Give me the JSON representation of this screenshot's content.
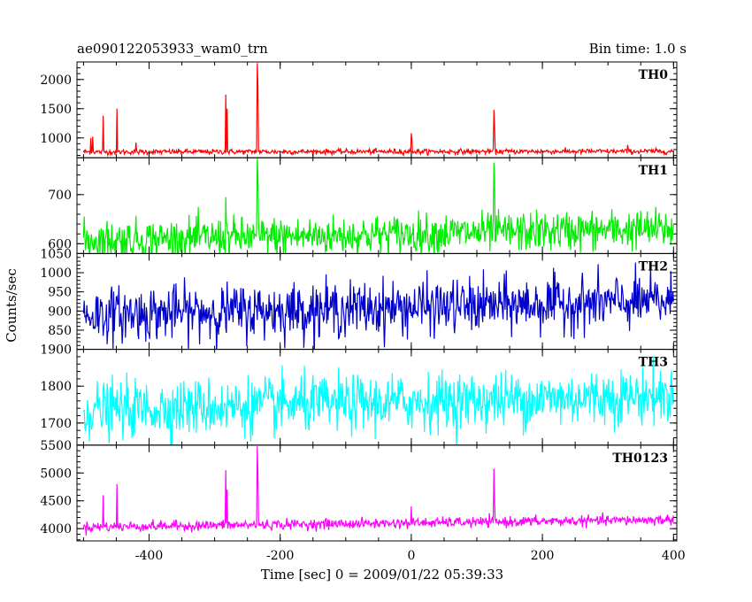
{
  "header": {
    "title": "ae090122053933_wam0_trn",
    "bin_time": "Bin time: 1.0 s"
  },
  "chart_data": {
    "type": "line",
    "xlabel": "Time [sec] 0 = 2009/01/22 05:39:33",
    "ylabel": "Counts/sec",
    "xlim": [
      -510,
      405
    ],
    "xticks": [
      -400,
      -200,
      0,
      200,
      400
    ],
    "bin_seconds": 1.0,
    "panels": [
      {
        "name": "TH0",
        "color": "#ff0000",
        "ylim": [
          660,
          2300
        ],
        "yticks": [
          1000,
          1500,
          2000
        ],
        "baseline": 760,
        "noise": 22,
        "trend_end": 770,
        "spikes": [
          [
            -489,
            1000
          ],
          [
            -486,
            1020
          ],
          [
            -470,
            1380
          ],
          [
            -449,
            1500
          ],
          [
            -420,
            920
          ],
          [
            -283,
            1740
          ],
          [
            -281,
            1500
          ],
          [
            -235,
            2280
          ],
          [
            -234,
            1900
          ],
          [
            0,
            1080
          ],
          [
            1,
            980
          ],
          [
            126,
            1480
          ],
          [
            127,
            1200
          ],
          [
            330,
            880
          ]
        ]
      },
      {
        "name": "TH1",
        "color": "#00ee00",
        "ylim": [
          580,
          775
        ],
        "yticks": [
          600,
          700
        ],
        "baseline": 607,
        "noise": 20,
        "trend_end": 630,
        "spikes": [
          [
            -235,
            775
          ],
          [
            -234,
            740
          ],
          [
            126,
            765
          ],
          [
            127,
            730
          ],
          [
            -283,
            695
          ]
        ]
      },
      {
        "name": "TH2",
        "color": "#0000cc",
        "ylim": [
          800,
          1050
        ],
        "yticks": [
          850,
          900,
          950,
          1000,
          1050
        ],
        "baseline": 890,
        "noise": 35,
        "trend_end": 925,
        "spikes": []
      },
      {
        "name": "TH3",
        "color": "#00ffff",
        "ylim": [
          1640,
          1900
        ],
        "yticks": [
          1700,
          1800,
          1900
        ],
        "baseline": 1735,
        "noise": 38,
        "trend_end": 1775,
        "spikes": []
      },
      {
        "name": "TH0123",
        "color": "#ff00ff",
        "ylim": [
          3780,
          5500
        ],
        "yticks": [
          4000,
          4500,
          5000,
          5500
        ],
        "baseline": 4030,
        "noise": 45,
        "trend_end": 4160,
        "spikes": [
          [
            -470,
            4600
          ],
          [
            -449,
            4800
          ],
          [
            -283,
            5050
          ],
          [
            -281,
            4700
          ],
          [
            -235,
            5480
          ],
          [
            -234,
            5000
          ],
          [
            0,
            4400
          ],
          [
            126,
            5080
          ],
          [
            127,
            4500
          ]
        ]
      }
    ]
  }
}
